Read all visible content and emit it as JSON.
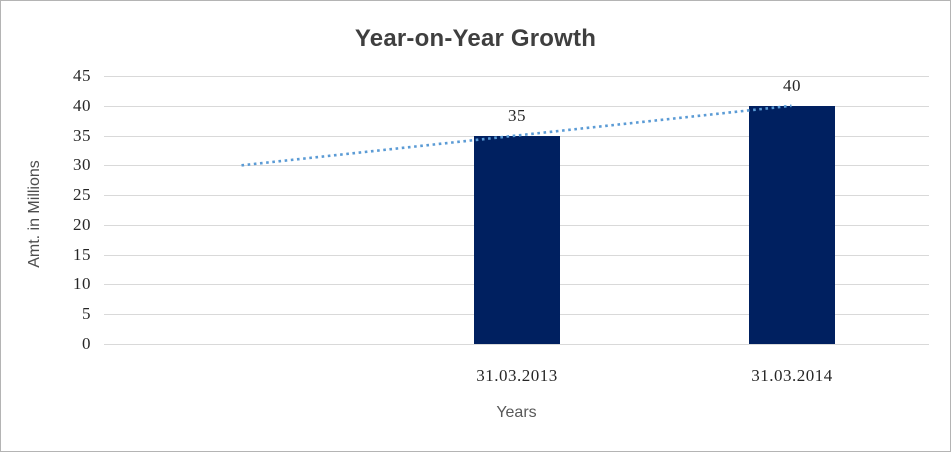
{
  "chart_data": {
    "type": "bar",
    "title": "Year-on-Year Growth",
    "categories": [
      "31.03.2013",
      "31.03.2014"
    ],
    "values": [
      35,
      40
    ],
    "data_labels": [
      "35",
      "40"
    ],
    "xlabel": "Years",
    "ylabel": "Amt. in Millions",
    "ylim": [
      0,
      45
    ],
    "yticks": [
      0,
      5,
      10,
      15,
      20,
      25,
      30,
      35,
      40,
      45
    ],
    "grid": true,
    "legend": "none",
    "trendline": {
      "style": "dotted",
      "start_value": 30,
      "end_value": 40
    }
  },
  "colors": {
    "bar": "#002060",
    "trendline": "#5B9BD5",
    "gridline": "#D9D9D9",
    "title_text": "#3F3F3F",
    "tick_text": "#262626",
    "axis_title_text": "#595959",
    "frame_border": "#B4B4B4",
    "background": "#FFFFFF"
  }
}
